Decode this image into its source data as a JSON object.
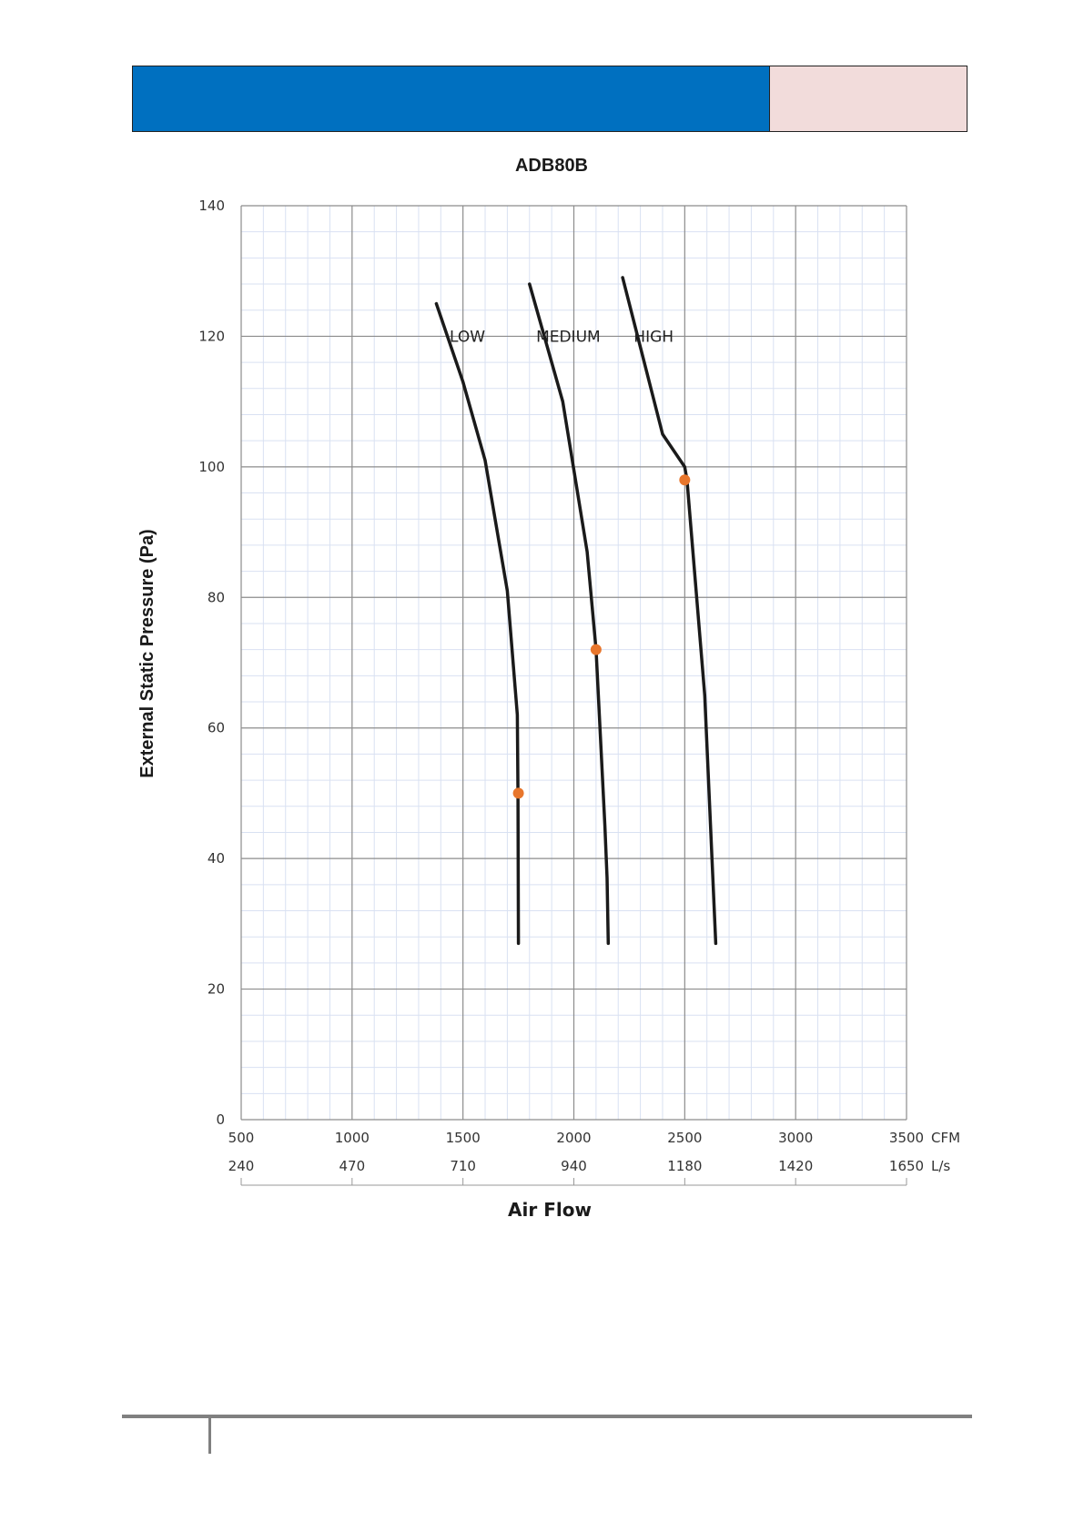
{
  "colors": {
    "header_blue": "#0070c0",
    "header_pink": "#f2dcdb",
    "curve": "#1a1a1a",
    "marker": "#e8762c",
    "grid_major": "#8c8c8c",
    "grid_minor": "#d9e1f2"
  },
  "chart_data": {
    "type": "line",
    "title": "ADB80B",
    "xlabel": "Air Flow",
    "ylabel": "External Static Pressure (Pa)",
    "xlim": [
      500,
      3500
    ],
    "ylim": [
      0,
      140
    ],
    "grid": true,
    "x_ticks": [
      "500",
      "1000",
      "1500",
      "2000",
      "2500",
      "3000",
      "3500"
    ],
    "x_ticks_ls": [
      "240",
      "470",
      "710",
      "940",
      "1180",
      "1420",
      "1650"
    ],
    "x_unit": "CFM",
    "x_unit_ls": "L/s",
    "y_ticks": [
      "0",
      "20",
      "40",
      "60",
      "80",
      "100",
      "120",
      "140"
    ],
    "series": [
      {
        "name": "LOW",
        "points": [
          [
            1380,
            125
          ],
          [
            1500,
            113
          ],
          [
            1600,
            101
          ],
          [
            1700,
            81
          ],
          [
            1745,
            62
          ],
          [
            1748,
            50
          ],
          [
            1750,
            27
          ]
        ],
        "operating_point": [
          1750,
          50
        ]
      },
      {
        "name": "MEDIUM",
        "points": [
          [
            1800,
            128
          ],
          [
            1950,
            110
          ],
          [
            2060,
            87
          ],
          [
            2100,
            72
          ],
          [
            2140,
            45
          ],
          [
            2150,
            37
          ],
          [
            2155,
            27
          ]
        ],
        "operating_point": [
          2100,
          72
        ]
      },
      {
        "name": "HIGH",
        "points": [
          [
            2220,
            129
          ],
          [
            2400,
            105
          ],
          [
            2500,
            100
          ],
          [
            2510,
            98
          ],
          [
            2590,
            65
          ],
          [
            2640,
            27
          ]
        ],
        "operating_point": [
          2500,
          98
        ]
      }
    ]
  }
}
